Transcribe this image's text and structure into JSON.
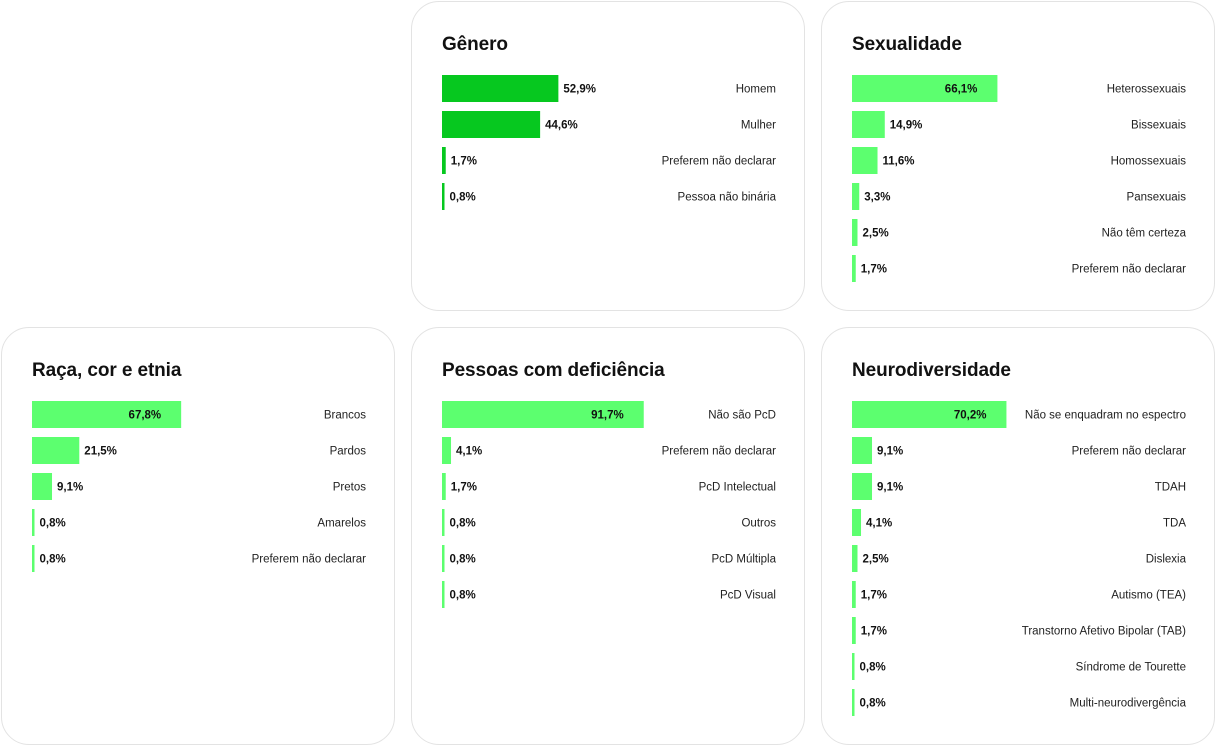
{
  "colors": {
    "genero_bar": "#06c81f",
    "green_bar": "#5cff6f",
    "card_border": "#e3e3e3"
  },
  "chart_data": [
    {
      "id": "genero",
      "type": "bar",
      "orientation": "horizontal",
      "title": "Gênero",
      "unit": "%",
      "categories": [
        "Homem",
        "Mulher",
        "Preferem não declarar",
        "Pessoa não binária"
      ],
      "values": [
        52.9,
        44.6,
        1.7,
        0.8
      ],
      "value_labels": [
        "52,9%",
        "44,6%",
        "1,7%",
        "0,8%"
      ],
      "bar_color": "#06c81f",
      "grid": false
    },
    {
      "id": "sexualidade",
      "type": "bar",
      "orientation": "horizontal",
      "title": "Sexualidade",
      "unit": "%",
      "categories": [
        "Heterossexuais",
        "Bissexuais",
        "Homossexuais",
        "Pansexuais",
        "Não têm certeza",
        "Preferem não declarar"
      ],
      "values": [
        66.1,
        14.9,
        11.6,
        3.3,
        2.5,
        1.7
      ],
      "value_labels": [
        "66,1%",
        "14,9%",
        "11,6%",
        "3,3%",
        "2,5%",
        "1,7%"
      ],
      "bar_color": "#5cff6f",
      "grid": false
    },
    {
      "id": "raca",
      "type": "bar",
      "orientation": "horizontal",
      "title": "Raça, cor e etnia",
      "unit": "%",
      "categories": [
        "Brancos",
        "Pardos",
        "Pretos",
        "Amarelos",
        "Preferem não declarar"
      ],
      "values": [
        67.8,
        21.5,
        9.1,
        0.8,
        0.8
      ],
      "value_labels": [
        "67,8%",
        "21,5%",
        "9,1%",
        "0,8%",
        "0,8%"
      ],
      "bar_color": "#5cff6f",
      "grid": false
    },
    {
      "id": "pcd",
      "type": "bar",
      "orientation": "horizontal",
      "title": "Pessoas com deficiência",
      "unit": "%",
      "categories": [
        "Não são PcD",
        "Preferem não declarar",
        "PcD Intelectual",
        "Outros",
        "PcD Múltipla",
        "PcD Visual"
      ],
      "values": [
        91.7,
        4.1,
        1.7,
        0.8,
        0.8,
        0.8
      ],
      "value_labels": [
        "91,7%",
        "4,1%",
        "1,7%",
        "0,8%",
        "0,8%",
        "0,8%"
      ],
      "bar_color": "#5cff6f",
      "grid": false
    },
    {
      "id": "neuro",
      "type": "bar",
      "orientation": "horizontal",
      "title": "Neurodiversidade",
      "unit": "%",
      "categories": [
        "Não se enquadram no espectro",
        "Preferem não declarar",
        "TDAH",
        "TDA",
        "Dislexia",
        "Autismo (TEA)",
        "Transtorno Afetivo Bipolar (TAB)",
        "Síndrome de Tourette",
        "Multi-neurodivergência"
      ],
      "values": [
        70.2,
        9.1,
        9.1,
        4.1,
        2.5,
        1.7,
        1.7,
        0.8,
        0.8
      ],
      "value_labels": [
        "70,2%",
        "9,1%",
        "9,1%",
        "4,1%",
        "2,5%",
        "1,7%",
        "1,7%",
        "0,8%",
        "0,8%"
      ],
      "bar_color": "#5cff6f",
      "grid": false
    }
  ]
}
